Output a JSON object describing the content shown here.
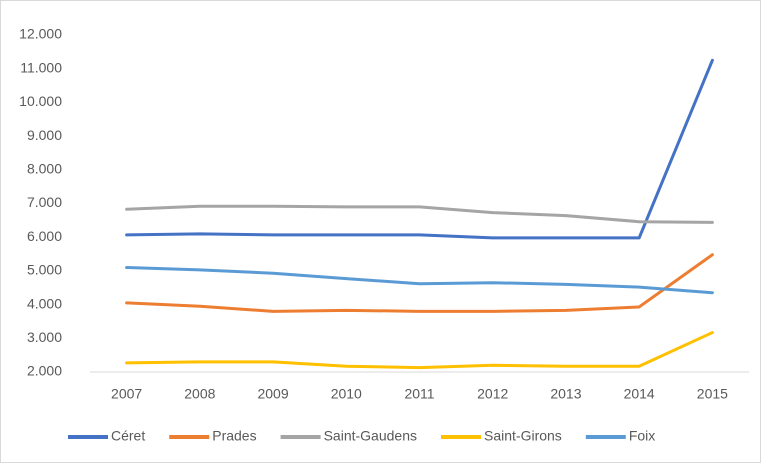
{
  "chart_data": {
    "type": "line",
    "categories": [
      "2007",
      "2008",
      "2009",
      "2010",
      "2011",
      "2012",
      "2013",
      "2014",
      "2015"
    ],
    "series": [
      {
        "name": "Céret",
        "color": "#4472c4",
        "values": [
          6070,
          6100,
          6070,
          6070,
          6070,
          5980,
          5980,
          5980,
          11250
        ]
      },
      {
        "name": "Prades",
        "color": "#ed7d31",
        "values": [
          4050,
          3950,
          3800,
          3830,
          3800,
          3800,
          3830,
          3930,
          5480
        ]
      },
      {
        "name": "Saint-Gaudens",
        "color": "#a5a5a5",
        "values": [
          6830,
          6920,
          6920,
          6900,
          6900,
          6730,
          6640,
          6460,
          6440
        ]
      },
      {
        "name": "Saint-Girons",
        "color": "#ffc000",
        "values": [
          2270,
          2300,
          2300,
          2170,
          2130,
          2200,
          2170,
          2170,
          3170
        ]
      },
      {
        "name": "Foix",
        "color": "#5b9bd5",
        "values": [
          5100,
          5030,
          4930,
          4770,
          4620,
          4650,
          4600,
          4520,
          4350
        ]
      }
    ],
    "ylim": [
      2000,
      12000
    ],
    "yticks": [
      {
        "value": 2000,
        "label": "2.000"
      },
      {
        "value": 3000,
        "label": "3.000"
      },
      {
        "value": 4000,
        "label": "4.000"
      },
      {
        "value": 5000,
        "label": "5.000"
      },
      {
        "value": 6000,
        "label": "6.000"
      },
      {
        "value": 7000,
        "label": "7.000"
      },
      {
        "value": 8000,
        "label": "8.000"
      },
      {
        "value": 9000,
        "label": "9.000"
      },
      {
        "value": 10000,
        "label": "10.000"
      },
      {
        "value": 11000,
        "label": "11.000"
      },
      {
        "value": 12000,
        "label": "12.000"
      }
    ],
    "grid": false,
    "legend": "bottom"
  }
}
